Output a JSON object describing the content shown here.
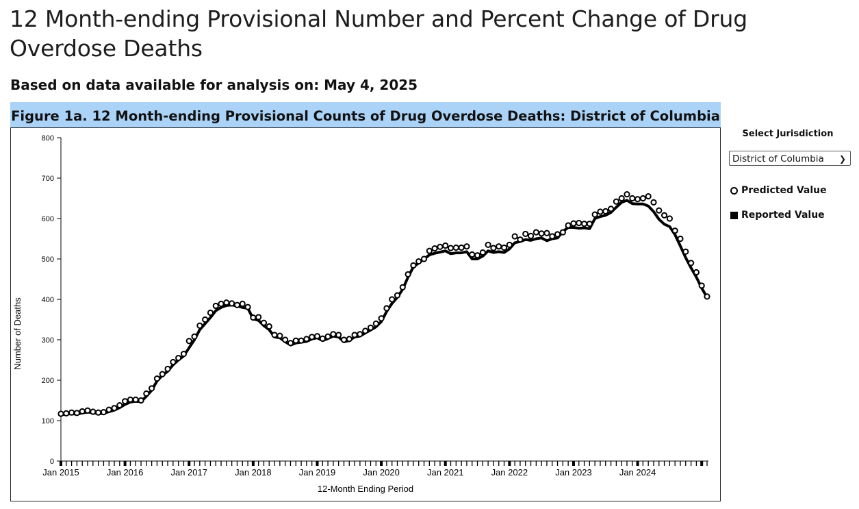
{
  "header": {
    "title": "12 Month-ending Provisional Number and Percent Change of Drug Overdose Deaths",
    "subtitle": "Based on data available for analysis on: May 4, 2025"
  },
  "figure": {
    "caption": "Figure 1a. 12 Month-ending Provisional Counts of Drug Overdose Deaths: District of Columbia"
  },
  "sidebar": {
    "select_label": "Select Jurisdiction",
    "jurisdiction": "District of Columbia",
    "legend": [
      {
        "label": "Predicted Value",
        "symbol": "open-circle"
      },
      {
        "label": "Reported Value",
        "symbol": "filled-square"
      }
    ]
  },
  "chart_data": {
    "type": "line",
    "xlabel": "12-Month Ending Period",
    "ylabel": "Number of Deaths",
    "ylim": [
      0,
      800
    ],
    "yticks": [
      0,
      100,
      200,
      300,
      400,
      500,
      600,
      700,
      800
    ],
    "year_labels": [
      "Jan 2015",
      "Jan 2016",
      "Jan 2017",
      "Jan 2018",
      "Jan 2019",
      "Jan 2020",
      "Jan 2021",
      "Jan 2022",
      "Jan 2023",
      "Jan 2024"
    ],
    "start_period": "Jan 2015",
    "end_period": "Dec 2024",
    "colors": {
      "line": "#000000",
      "marker_fill": "#ffffff",
      "header_bg": "#abd2f7"
    },
    "series": [
      {
        "name": "Reported Value",
        "values": [
          115,
          116,
          117,
          116,
          119,
          121,
          120,
          117,
          118,
          122,
          126,
          132,
          140,
          146,
          148,
          147,
          160,
          175,
          198,
          212,
          222,
          238,
          250,
          260,
          280,
          300,
          325,
          340,
          355,
          372,
          380,
          385,
          386,
          384,
          380,
          378,
          352,
          348,
          335,
          325,
          307,
          305,
          295,
          287,
          292,
          294,
          296,
          302,
          305,
          298,
          303,
          309,
          307,
          295,
          298,
          307,
          309,
          317,
          324,
          332,
          345,
          370,
          390,
          405,
          425,
          455,
          480,
          490,
          500,
          510,
          514,
          517,
          520,
          513,
          515,
          515,
          518,
          500,
          500,
          507,
          520,
          516,
          518,
          516,
          525,
          540,
          543,
          548,
          546,
          550,
          552,
          545,
          550,
          552,
          568,
          578,
          578,
          576,
          577,
          575,
          600,
          605,
          608,
          615,
          628,
          640,
          645,
          637,
          636,
          636,
          631,
          617,
          598,
          586,
          580,
          560,
          532,
          503,
          478,
          455,
          428,
          405
        ]
      },
      {
        "name": "Predicted Value",
        "values": [
          117,
          118,
          120,
          119,
          123,
          125,
          122,
          120,
          121,
          127,
          131,
          138,
          148,
          152,
          152,
          150,
          167,
          180,
          204,
          215,
          228,
          245,
          255,
          265,
          297,
          308,
          335,
          350,
          367,
          384,
          389,
          392,
          390,
          386,
          389,
          381,
          355,
          356,
          342,
          333,
          312,
          310,
          300,
          292,
          298,
          298,
          302,
          307,
          309,
          303,
          308,
          314,
          312,
          300,
          302,
          312,
          314,
          322,
          330,
          340,
          353,
          378,
          400,
          410,
          430,
          462,
          484,
          494,
          500,
          520,
          526,
          530,
          533,
          527,
          528,
          528,
          531,
          511,
          509,
          516,
          535,
          527,
          531,
          528,
          535,
          556,
          548,
          562,
          557,
          566,
          563,
          564,
          556,
          561,
          566,
          583,
          588,
          589,
          587,
          587,
          610,
          617,
          618,
          624,
          642,
          650,
          660,
          650,
          648,
          650,
          655,
          640,
          620,
          608,
          600,
          570,
          550,
          518,
          490,
          467,
          434,
          407
        ]
      }
    ]
  }
}
